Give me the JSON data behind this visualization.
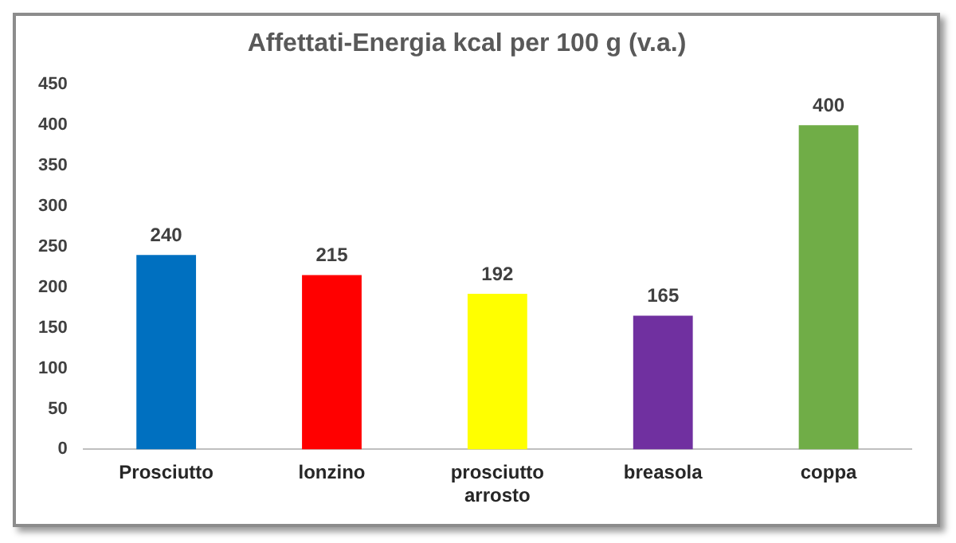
{
  "chart_data": {
    "type": "bar",
    "title": "Affettati-Energia kcal per 100 g (v.a.)",
    "categories": [
      "Prosciutto",
      "lonzino",
      "prosciutto arrosto",
      "breasola",
      "coppa"
    ],
    "values": [
      240,
      215,
      192,
      165,
      400
    ],
    "colors": [
      "#0070c0",
      "#ff0000",
      "#ffff00",
      "#7030a0",
      "#70ad47"
    ],
    "ylim": [
      0,
      450
    ],
    "yticks": [
      0,
      50,
      100,
      150,
      200,
      250,
      300,
      350,
      400,
      450
    ],
    "grid": false,
    "legend": false,
    "data_labels": true
  }
}
